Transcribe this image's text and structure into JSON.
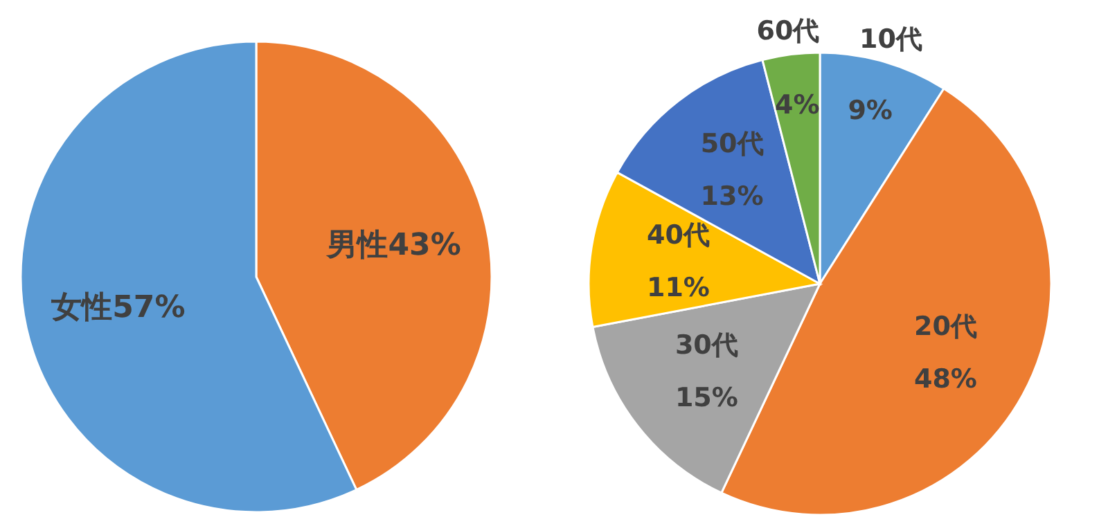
{
  "chart_data": [
    {
      "type": "pie",
      "categories": [
        "男性",
        "女性"
      ],
      "values": [
        43,
        57
      ],
      "value_labels": [
        "43%",
        "57%"
      ],
      "colors": [
        "#ed7d31",
        "#5b9bd5"
      ]
    },
    {
      "type": "pie",
      "categories": [
        "10代",
        "20代",
        "30代",
        "40代",
        "50代",
        "60代"
      ],
      "values": [
        9,
        48,
        15,
        11,
        13,
        4
      ],
      "value_labels": [
        "9%",
        "48%",
        "15%",
        "11%",
        "13%",
        "4%"
      ],
      "colors": [
        "#5b9bd5",
        "#ed7d31",
        "#a5a5a5",
        "#ffc000",
        "#4472c4",
        "#70ad47"
      ]
    }
  ]
}
